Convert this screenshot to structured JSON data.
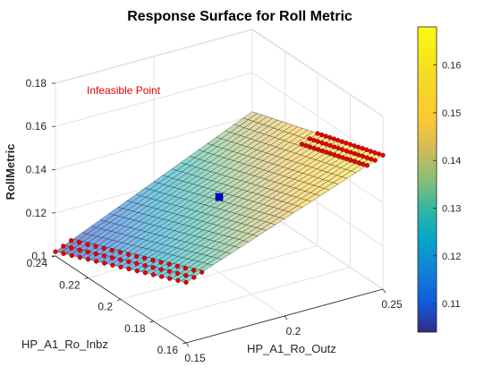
{
  "chart_data": {
    "type": "surface",
    "title": "Response Surface for Roll Metric",
    "xlabel": "HP_A1_Ro_Outz",
    "ylabel": "HP_A1_Ro_Inbz",
    "zlabel": "RollMetric",
    "xlim": [
      0.15,
      0.25
    ],
    "ylim": [
      0.16,
      0.24
    ],
    "zlim": [
      0.1,
      0.18
    ],
    "x_ticks": [
      "0.15",
      "0.2",
      "0.25"
    ],
    "y_ticks": [
      "0.16",
      "0.18",
      "0.2",
      "0.22",
      "0.24"
    ],
    "z_ticks": [
      "0.1",
      "0.12",
      "0.14",
      "0.16",
      "0.18"
    ],
    "surface_x_range": [
      0.15,
      0.25
    ],
    "surface_y_range": [
      0.16,
      0.24
    ],
    "surface_corners": {
      "x0.15_y0.24": 0.102,
      "x0.25_y0.24": 0.142,
      "x0.15_y0.16": 0.128,
      "x0.25_y0.16": 0.162
    },
    "infeasible_regions": [
      {
        "x": 0.15,
        "y_range": [
          0.16,
          0.24
        ]
      },
      {
        "x": 0.25,
        "y_range": [
          0.16,
          0.2
        ]
      }
    ],
    "marked_point": {
      "x": 0.2,
      "y": 0.2,
      "z": 0.135,
      "color": "#0000cc"
    },
    "annotation": {
      "text": "Infeasible Point",
      "color": "#e60000"
    },
    "colorbar": {
      "limits": [
        0.104,
        0.168
      ],
      "ticks": [
        "0.11",
        "0.12",
        "0.13",
        "0.14",
        "0.15",
        "0.16"
      ],
      "colormap": "parula"
    },
    "grid": true
  }
}
